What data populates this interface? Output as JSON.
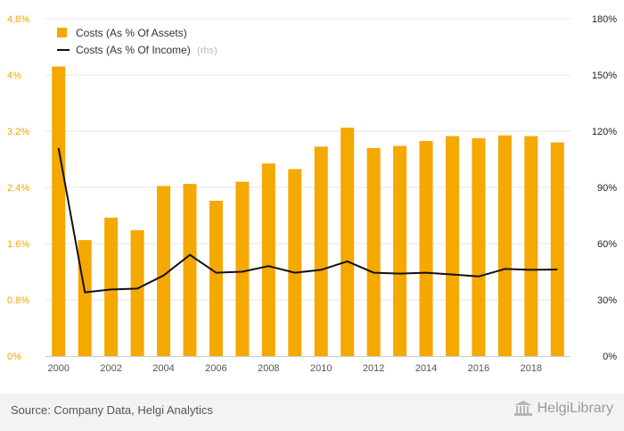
{
  "chart_data": {
    "type": "bar",
    "categories": [
      "2000",
      "2001",
      "2002",
      "2003",
      "2004",
      "2005",
      "2006",
      "2007",
      "2008",
      "2009",
      "2010",
      "2011",
      "2012",
      "2013",
      "2014",
      "2015",
      "2016",
      "2017",
      "2018",
      "2019"
    ],
    "x_tick_labels": [
      "2000",
      "2002",
      "2004",
      "2006",
      "2008",
      "2010",
      "2012",
      "2014",
      "2016",
      "2018"
    ],
    "y_left": {
      "ticks": [
        "0%",
        "0.8%",
        "1.6%",
        "2.4%",
        "3.2%",
        "4%",
        "4.8%"
      ],
      "ylim": [
        0,
        4.8
      ]
    },
    "y_right": {
      "ticks": [
        "0%",
        "30%",
        "60%",
        "90%",
        "120%",
        "150%",
        "180%"
      ],
      "ylim": [
        0,
        180
      ]
    },
    "series": [
      {
        "name": "Costs (As % Of Assets)",
        "type": "bar",
        "axis": "left",
        "color": "#f5a800",
        "values": [
          4.12,
          1.65,
          1.97,
          1.79,
          2.42,
          2.45,
          2.21,
          2.48,
          2.74,
          2.66,
          2.98,
          3.25,
          2.96,
          2.99,
          3.06,
          3.13,
          3.1,
          3.14,
          3.13,
          3.04
        ]
      },
      {
        "name": "Costs (As % Of Income)",
        "note": "(rhs)",
        "type": "line",
        "axis": "right",
        "color": "#111111",
        "values": [
          111,
          34,
          35.5,
          36,
          43,
          54,
          44.5,
          45,
          48,
          44.5,
          46,
          50.5,
          44.5,
          44,
          44.5,
          43.5,
          42.5,
          46.5,
          46,
          46.2
        ]
      }
    ],
    "grid": true,
    "legend_position": "top-left"
  },
  "footer": {
    "source": "Source: Company Data, Helgi Analytics",
    "brand_name": "HelgiLibrary"
  }
}
